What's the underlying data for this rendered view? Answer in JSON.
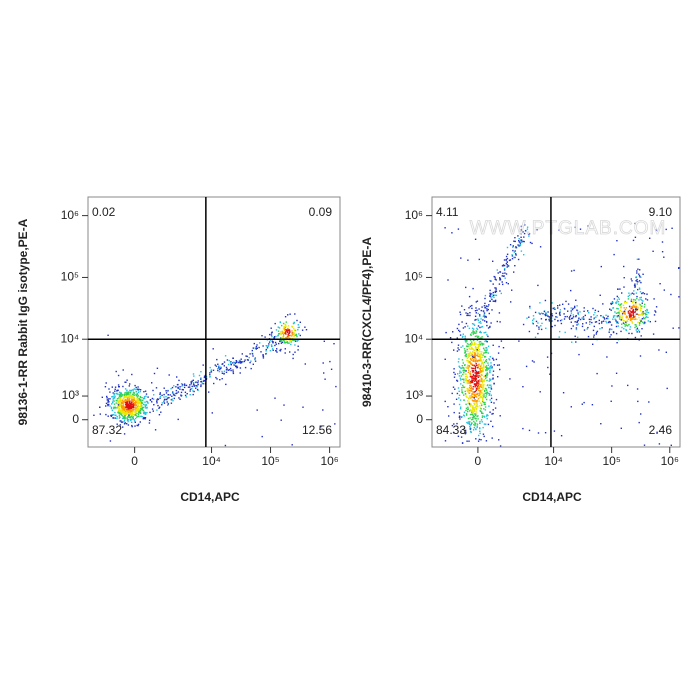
{
  "chart_data": [
    {
      "type": "flow-quadrant",
      "ylabel": "98136-1-RR Rabbit IgG isotype,PE-A",
      "xlabel": "CD14,APC",
      "xscale": "biexponential",
      "yscale": "biexponential",
      "xlim": [
        -3000,
        1500000
      ],
      "ylim": [
        -1200,
        2000000
      ],
      "xticks": [
        0,
        {
          "value": 10000,
          "label": "10⁴"
        },
        {
          "value": 100000,
          "label": "10⁵"
        },
        {
          "value": 1000000,
          "label": "10⁶"
        }
      ],
      "yticks": [
        0,
        {
          "value": 1000,
          "label": "10³"
        },
        {
          "value": 10000,
          "label": "10⁴"
        },
        {
          "value": 100000,
          "label": "10⁵"
        },
        {
          "value": 1000000,
          "label": "10⁶"
        }
      ],
      "gate_x": 8000,
      "gate_y": 10000,
      "values": [
        0.02,
        0.09,
        87.32,
        12.56
      ]
    },
    {
      "type": "flow-quadrant",
      "ylabel": "98410-3-RR(CXCL4/PF4),PE-A",
      "xlabel": "CD14,APC",
      "xscale": "biexponential",
      "yscale": "biexponential",
      "xlim": [
        -3000,
        1500000
      ],
      "ylim": [
        -1200,
        2000000
      ],
      "xticks": [
        0,
        {
          "value": 10000,
          "label": "10⁴"
        },
        {
          "value": 100000,
          "label": "10⁵"
        },
        {
          "value": 1000000,
          "label": "10⁶"
        }
      ],
      "yticks": [
        0,
        {
          "value": 1000,
          "label": "10³"
        },
        {
          "value": 10000,
          "label": "10⁴"
        },
        {
          "value": 100000,
          "label": "10⁵"
        },
        {
          "value": 1000000,
          "label": "10⁶"
        }
      ],
      "gate_x": 9000,
      "gate_y": 10000,
      "values": [
        4.11,
        9.1,
        84.33,
        2.46
      ],
      "value_labels": [
        "4.11",
        "9.10",
        "84.33",
        "2.46"
      ],
      "watermark": "WWW.PTGLAB.COM"
    }
  ]
}
